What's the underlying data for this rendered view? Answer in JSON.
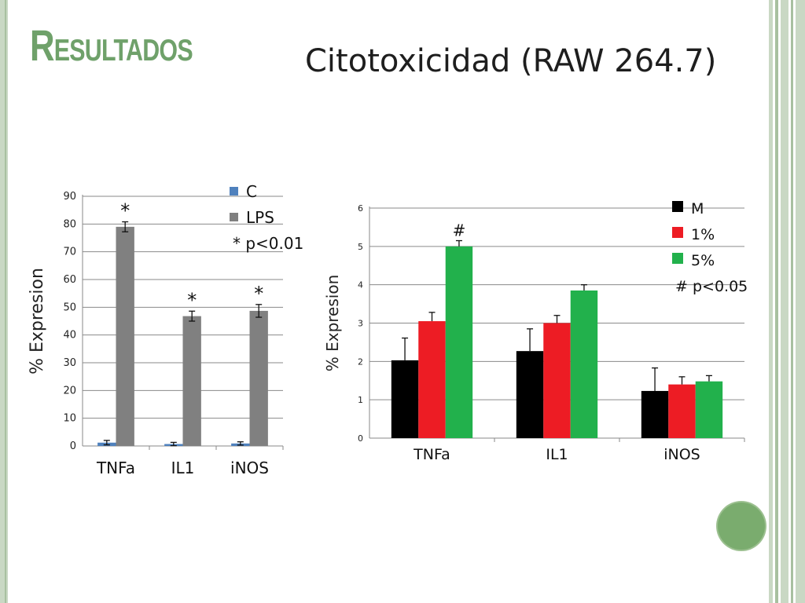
{
  "slide": {
    "title": "Resultados",
    "subtitle": "Citotoxicidad (RAW 264.7)"
  },
  "colors": {
    "theme_green": "#6fa16a",
    "C": "#4f81bd",
    "LPS": "#808080",
    "M": "#000000",
    "1%": "#ed1c24",
    "5%": "#22b14c"
  },
  "chart_data": [
    {
      "type": "bar",
      "categories": [
        "TNFa",
        "IL1",
        "iNOS"
      ],
      "series": [
        {
          "name": "C",
          "values": [
            1.2,
            0.7,
            0.9
          ],
          "errors": [
            0.8,
            0.6,
            0.6
          ]
        },
        {
          "name": "LPS",
          "values": [
            79,
            46.8,
            48.7
          ],
          "errors": [
            1.8,
            1.8,
            2.3
          ]
        }
      ],
      "ylabel": "% Expresion",
      "ylim": [
        0,
        90
      ],
      "yticks": [
        "0",
        "10",
        "20",
        "30",
        "40",
        "50",
        "60",
        "70",
        "80",
        "90"
      ],
      "grid": true,
      "legend": [
        "C",
        "LPS"
      ],
      "legend_placement": "top-right",
      "legend_note": "* p<0.01",
      "significance_mark": "*",
      "significant": [
        [
          false,
          true
        ],
        [
          false,
          true
        ],
        [
          false,
          true
        ]
      ]
    },
    {
      "type": "bar",
      "categories": [
        "TNFa",
        "IL1",
        "iNOS"
      ],
      "series": [
        {
          "name": "M",
          "values": [
            2.03,
            2.27,
            1.23
          ],
          "errors": [
            0.58,
            0.58,
            0.6
          ]
        },
        {
          "name": "1%",
          "values": [
            3.05,
            3.0,
            1.4
          ],
          "errors": [
            0.23,
            0.2,
            0.2
          ]
        },
        {
          "name": "5%",
          "values": [
            5.0,
            3.85,
            1.48
          ],
          "errors": [
            0.15,
            0.15,
            0.15
          ]
        }
      ],
      "ylabel": "% Expresion",
      "ylim": [
        0,
        6
      ],
      "yticks": [
        "0",
        "1",
        "2",
        "3",
        "4",
        "5",
        "6"
      ],
      "grid": true,
      "legend": [
        "M",
        "1%",
        "5%"
      ],
      "legend_placement": "top-right",
      "legend_note": "# p<0.05",
      "significance_mark": "#",
      "significant": [
        [
          false,
          false,
          true
        ],
        [
          false,
          false,
          false
        ],
        [
          false,
          false,
          false
        ]
      ]
    }
  ]
}
